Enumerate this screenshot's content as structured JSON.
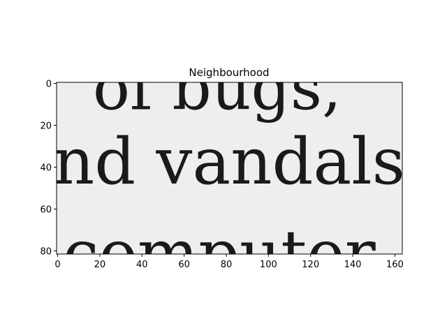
{
  "chart_data": {
    "type": "heatmap",
    "title": "Neighbourhood",
    "xlabel": "",
    "ylabel": "",
    "xlim": [
      0,
      163
    ],
    "ylim": [
      81,
      0
    ],
    "x_ticks": [
      0,
      20,
      40,
      60,
      80,
      100,
      120,
      140,
      160
    ],
    "y_ticks": [
      0,
      20,
      40,
      60,
      80
    ],
    "grid": false,
    "colormap": "gray",
    "image_content": {
      "description": "grayscale crop of a scanned printed page",
      "lines": [
        {
          "text": "of bugs,",
          "y_center": 3
        },
        {
          "text": "nd vandals.",
          "y_center": 38
        },
        {
          "text": "computer",
          "y_center": 82
        }
      ]
    }
  }
}
